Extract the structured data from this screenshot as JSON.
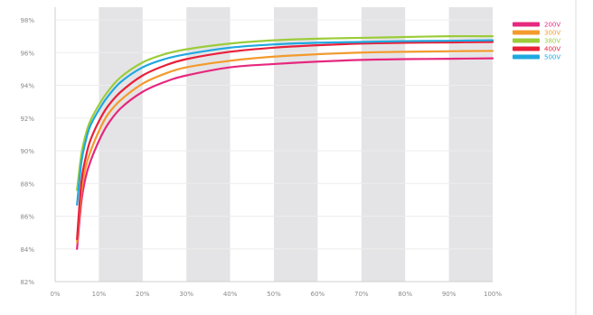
{
  "chart_data": {
    "type": "line",
    "xlim": [
      0,
      100
    ],
    "ylim": [
      82,
      98
    ],
    "x_ticks": [
      0,
      10,
      20,
      30,
      40,
      50,
      60,
      70,
      80,
      90,
      100
    ],
    "x_tick_labels": [
      "0%",
      "10%",
      "20%",
      "30%",
      "40%",
      "50%",
      "60%",
      "70%",
      "80%",
      "90%",
      "100%"
    ],
    "y_ticks": [
      82,
      84,
      86,
      88,
      90,
      92,
      94,
      96,
      98
    ],
    "y_tick_labels": [
      "82%",
      "84%",
      "86%",
      "88%",
      "90%",
      "92%",
      "94%",
      "96%",
      "98%"
    ],
    "shaded_x_bands": [
      [
        10,
        20
      ],
      [
        30,
        40
      ],
      [
        50,
        60
      ],
      [
        70,
        80
      ],
      [
        90,
        100
      ]
    ],
    "grid": "horizontal",
    "legend_position": "top-right",
    "series": [
      {
        "name": "200V",
        "color": "#e6287e",
        "x": [
          5,
          6,
          7,
          8,
          10,
          12,
          15,
          20,
          25,
          30,
          40,
          50,
          60,
          70,
          80,
          90,
          100
        ],
        "y": [
          84.0,
          86.9,
          88.4,
          89.3,
          90.6,
          91.6,
          92.6,
          93.6,
          94.2,
          94.6,
          95.1,
          95.3,
          95.45,
          95.55,
          95.6,
          95.62,
          95.65
        ]
      },
      {
        "name": "300V",
        "color": "#f39a2c",
        "x": [
          5,
          6,
          7,
          8,
          10,
          12,
          15,
          20,
          25,
          30,
          40,
          50,
          60,
          70,
          80,
          90,
          100
        ],
        "y": [
          84.4,
          87.5,
          89.0,
          89.9,
          91.2,
          92.2,
          93.1,
          94.1,
          94.7,
          95.1,
          95.5,
          95.75,
          95.9,
          96.0,
          96.05,
          96.08,
          96.1
        ]
      },
      {
        "name": "380V",
        "color": "#9ccc3a",
        "x": [
          5,
          6,
          7,
          8,
          10,
          12,
          15,
          20,
          25,
          30,
          40,
          50,
          60,
          70,
          80,
          90,
          100
        ],
        "y": [
          87.6,
          89.8,
          91.0,
          91.8,
          92.8,
          93.6,
          94.5,
          95.4,
          95.9,
          96.2,
          96.55,
          96.75,
          96.85,
          96.9,
          96.95,
          97.0,
          97.0
        ]
      },
      {
        "name": "400V",
        "color": "#e8203a",
        "x": [
          5,
          6,
          7,
          8,
          10,
          12,
          15,
          20,
          25,
          30,
          40,
          50,
          60,
          70,
          80,
          90,
          100
        ],
        "y": [
          84.6,
          88.1,
          89.6,
          90.6,
          91.8,
          92.7,
          93.6,
          94.6,
          95.2,
          95.6,
          96.05,
          96.3,
          96.45,
          96.55,
          96.6,
          96.62,
          96.65
        ]
      },
      {
        "name": "500V",
        "color": "#1fa8e0",
        "x": [
          5,
          6,
          7,
          8,
          10,
          12,
          15,
          20,
          25,
          30,
          40,
          50,
          60,
          70,
          80,
          90,
          100
        ],
        "y": [
          86.7,
          89.3,
          90.6,
          91.5,
          92.5,
          93.3,
          94.2,
          95.1,
          95.6,
          95.9,
          96.3,
          96.5,
          96.6,
          96.65,
          96.7,
          96.72,
          96.75
        ]
      }
    ]
  }
}
